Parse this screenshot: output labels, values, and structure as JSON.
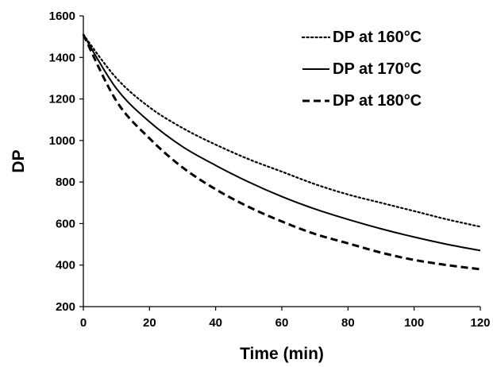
{
  "chart_data": {
    "type": "line",
    "title": "",
    "xlabel": "Time (min)",
    "ylabel": "DP",
    "xlim": [
      0,
      120
    ],
    "ylim": [
      200,
      1600
    ],
    "xticks": [
      "0",
      "20",
      "40",
      "60",
      "80",
      "100",
      "120"
    ],
    "yticks": [
      "200",
      "400",
      "600",
      "800",
      "1000",
      "1200",
      "1400",
      "1600"
    ],
    "grid": false,
    "legend_position": "top-right",
    "x": [
      0,
      10,
      20,
      30,
      40,
      50,
      60,
      70,
      80,
      90,
      100,
      110,
      120
    ],
    "series": [
      {
        "name": "DP at 160°C",
        "style": "dotted",
        "color": "#000000",
        "values": [
          1510,
          1300,
          1160,
          1060,
          980,
          910,
          850,
          790,
          740,
          700,
          660,
          620,
          585
        ]
      },
      {
        "name": "DP at 170°C",
        "style": "solid",
        "color": "#000000",
        "values": [
          1510,
          1250,
          1090,
          970,
          880,
          800,
          730,
          670,
          620,
          575,
          535,
          500,
          470
        ]
      },
      {
        "name": "DP at 180°C",
        "style": "dashed",
        "color": "#000000",
        "values": [
          1510,
          1190,
          1010,
          870,
          765,
          680,
          610,
          550,
          505,
          460,
          425,
          400,
          380
        ]
      }
    ]
  }
}
